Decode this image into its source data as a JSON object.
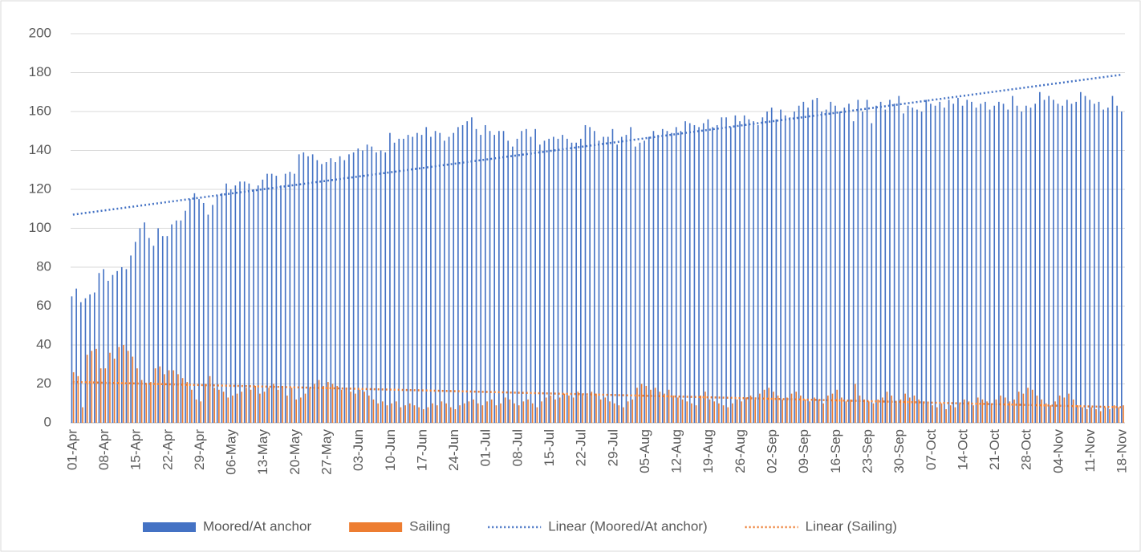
{
  "chart_data": {
    "type": "bar",
    "categories": [
      "01-Apr",
      null,
      null,
      null,
      null,
      null,
      null,
      "08-Apr",
      null,
      null,
      null,
      null,
      null,
      null,
      "15-Apr",
      null,
      null,
      null,
      null,
      null,
      null,
      "22-Apr",
      null,
      null,
      null,
      null,
      null,
      null,
      "29-Apr",
      null,
      null,
      null,
      null,
      null,
      null,
      "06-May",
      null,
      null,
      null,
      null,
      null,
      null,
      "13-May",
      null,
      null,
      null,
      null,
      null,
      null,
      "20-May",
      null,
      null,
      null,
      null,
      null,
      null,
      "27-May",
      null,
      null,
      null,
      null,
      null,
      null,
      "03-Jun",
      null,
      null,
      null,
      null,
      null,
      null,
      "10-Jun",
      null,
      null,
      null,
      null,
      null,
      null,
      "17-Jun",
      null,
      null,
      null,
      null,
      null,
      null,
      "24-Jun",
      null,
      null,
      null,
      null,
      null,
      null,
      "01-Jul",
      null,
      null,
      null,
      null,
      null,
      null,
      "08-Jul",
      null,
      null,
      null,
      null,
      null,
      null,
      "15-Jul",
      null,
      null,
      null,
      null,
      null,
      null,
      "22-Jul",
      null,
      null,
      null,
      null,
      null,
      null,
      "29-Jul",
      null,
      null,
      null,
      null,
      null,
      null,
      "05-Aug",
      null,
      null,
      null,
      null,
      null,
      null,
      "12-Aug",
      null,
      null,
      null,
      null,
      null,
      null,
      "19-Aug",
      null,
      null,
      null,
      null,
      null,
      null,
      "26-Aug",
      null,
      null,
      null,
      null,
      null,
      null,
      "02-Sep",
      null,
      null,
      null,
      null,
      null,
      null,
      "09-Sep",
      null,
      null,
      null,
      null,
      null,
      null,
      "16-Sep",
      null,
      null,
      null,
      null,
      null,
      null,
      "23-Sep",
      null,
      null,
      null,
      null,
      null,
      null,
      "30-Sep",
      null,
      null,
      null,
      null,
      null,
      null,
      "07-Oct",
      null,
      null,
      null,
      null,
      null,
      null,
      "14-Oct",
      null,
      null,
      null,
      null,
      null,
      null,
      "21-Oct",
      null,
      null,
      null,
      null,
      null,
      null,
      "28-Oct",
      null,
      null,
      null,
      null,
      null,
      null,
      "04-Nov",
      null,
      null,
      null,
      null,
      null,
      null,
      "11-Nov",
      null,
      null,
      null,
      null,
      null,
      null,
      "18-Nov"
    ],
    "series": [
      {
        "name": "Moored/At anchor",
        "color": "#4472c4",
        "values": [
          65,
          69,
          62,
          64,
          66,
          67,
          77,
          79,
          73,
          76,
          78,
          80,
          79,
          86,
          93,
          100,
          103,
          95,
          91,
          100,
          96,
          96,
          102,
          104,
          104,
          109,
          115,
          118,
          115,
          113,
          107,
          112,
          117,
          118,
          123,
          120,
          122,
          124,
          124,
          123,
          120,
          122,
          125,
          128,
          128,
          127,
          122,
          128,
          129,
          128,
          138,
          139,
          137,
          138,
          135,
          133,
          134,
          136,
          134,
          137,
          135,
          138,
          139,
          141,
          140,
          143,
          142,
          139,
          140,
          139,
          149,
          144,
          146,
          146,
          148,
          147,
          149,
          148,
          152,
          147,
          150,
          149,
          145,
          147,
          149,
          152,
          153,
          155,
          157,
          151,
          148,
          153,
          150,
          148,
          150,
          150,
          145,
          142,
          146,
          150,
          151,
          147,
          151,
          143,
          145,
          146,
          147,
          146,
          148,
          146,
          144,
          144,
          146,
          153,
          152,
          150,
          145,
          147,
          147,
          151,
          143,
          147,
          148,
          152,
          142,
          144,
          145,
          147,
          150,
          148,
          151,
          150,
          149,
          152,
          150,
          155,
          154,
          153,
          152,
          154,
          156,
          152,
          153,
          157,
          157,
          152,
          158,
          155,
          158,
          156,
          155,
          153,
          157,
          160,
          162,
          156,
          161,
          158,
          157,
          160,
          163,
          165,
          162,
          166,
          167,
          160,
          161,
          165,
          163,
          160,
          162,
          164,
          155,
          166,
          160,
          166,
          154,
          163,
          165,
          161,
          166,
          164,
          168,
          159,
          163,
          162,
          161,
          160,
          166,
          164,
          163,
          165,
          162,
          166,
          164,
          167,
          163,
          166,
          165,
          162,
          164,
          165,
          161,
          163,
          165,
          164,
          161,
          168,
          163,
          160,
          163,
          162,
          164,
          170,
          166,
          168,
          166,
          164,
          163,
          166,
          164,
          165,
          170,
          168,
          166,
          164,
          165,
          161,
          162,
          168,
          163,
          160
        ]
      },
      {
        "name": "Sailing",
        "color": "#ed7d31",
        "values": [
          26,
          24,
          8,
          35,
          37,
          38,
          28,
          28,
          36,
          33,
          39,
          40,
          37,
          34,
          28,
          22,
          20,
          21,
          28,
          29,
          25,
          27,
          27,
          25,
          23,
          21,
          17,
          12,
          11,
          20,
          24,
          18,
          17,
          16,
          13,
          14,
          15,
          16,
          18,
          17,
          19,
          15,
          16,
          18,
          20,
          17,
          19,
          14,
          18,
          12,
          13,
          15,
          18,
          20,
          22,
          19,
          21,
          20,
          19,
          17,
          18,
          16,
          15,
          17,
          16,
          14,
          12,
          10,
          11,
          9,
          10,
          11,
          8,
          9,
          10,
          9,
          8,
          7,
          8,
          10,
          9,
          11,
          10,
          8,
          7,
          9,
          10,
          11,
          12,
          10,
          9,
          11,
          12,
          9,
          10,
          13,
          12,
          10,
          9,
          11,
          12,
          10,
          8,
          11,
          13,
          14,
          12,
          13,
          15,
          14,
          13,
          16,
          15,
          14,
          16,
          15,
          12,
          13,
          11,
          10,
          9,
          8,
          11,
          12,
          18,
          20,
          19,
          17,
          18,
          16,
          15,
          17,
          14,
          13,
          12,
          11,
          10,
          9,
          14,
          16,
          12,
          11,
          10,
          9,
          8,
          10,
          12,
          11,
          13,
          14,
          12,
          15,
          17,
          18,
          16,
          14,
          12,
          13,
          15,
          16,
          14,
          12,
          11,
          13,
          12,
          10,
          14,
          15,
          17,
          13,
          11,
          12,
          20,
          14,
          12,
          11,
          10,
          12,
          13,
          16,
          14,
          11,
          12,
          15,
          13,
          14,
          12,
          11,
          10,
          9,
          8,
          10,
          7,
          9,
          8,
          10,
          12,
          11,
          9,
          13,
          12,
          11,
          10,
          12,
          14,
          13,
          11,
          12,
          16,
          15,
          18,
          17,
          14,
          12,
          10,
          9,
          11,
          14,
          13,
          15,
          12,
          9,
          8,
          7,
          8,
          7,
          6,
          8,
          7,
          9,
          8,
          9
        ]
      }
    ],
    "trendlines": [
      {
        "name": "Linear (Moored/At anchor)",
        "color": "#4472c4",
        "from": 107,
        "to": 179
      },
      {
        "name": "Linear (Sailing)",
        "color": "#ed7d31",
        "from": 21,
        "to": 8
      }
    ],
    "ylim": [
      0,
      200
    ],
    "yticks": [
      0,
      20,
      40,
      60,
      80,
      100,
      120,
      140,
      160,
      180,
      200
    ],
    "grid": true,
    "legend": "bottom"
  }
}
